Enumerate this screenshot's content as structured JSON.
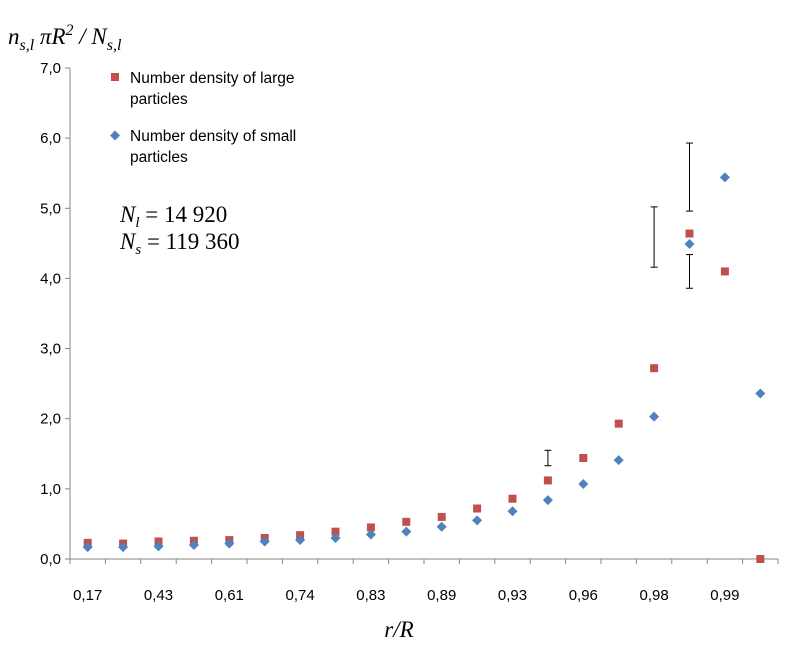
{
  "chart_data": {
    "type": "scatter",
    "ylabel": {
      "prefix": "n",
      "prefix_sub": "s,l",
      "middle": " πR",
      "sup": "2",
      "suffix": " / N",
      "suffix_sub": "s,l"
    },
    "xlabel": "r/R",
    "categories": [
      "0,17",
      "",
      "0,43",
      "",
      "0,61",
      "",
      "0,74",
      "",
      "0,83",
      "",
      "0,89",
      "",
      "0,93",
      "",
      "0,96",
      "",
      "0,98",
      "",
      "0,99",
      ""
    ],
    "x_tick_labels": [
      "0,17",
      "0,43",
      "0,61",
      "0,74",
      "0,83",
      "0,89",
      "0,93",
      "0,96",
      "0,98",
      "0,99"
    ],
    "ylim": [
      0,
      7
    ],
    "y_ticks": [
      "0,0",
      "1,0",
      "2,0",
      "3,0",
      "4,0",
      "5,0",
      "6,0",
      "7,0"
    ],
    "series": [
      {
        "name": "Number density of large particles",
        "color": "#c0504d",
        "marker": "square",
        "values": [
          0.23,
          0.22,
          0.25,
          0.26,
          0.27,
          0.3,
          0.34,
          0.39,
          0.45,
          0.53,
          0.6,
          0.72,
          0.86,
          1.12,
          1.44,
          1.93,
          2.72,
          4.64,
          4.1,
          0.0
        ],
        "error_bars": [
          {
            "index": 16,
            "low": 4.16,
            "high": 5.02
          },
          {
            "index": 17,
            "low": 3.86,
            "high": 4.34
          }
        ]
      },
      {
        "name": "Number density of small particles",
        "color": "#4f81bd",
        "marker": "diamond",
        "values": [
          0.17,
          0.17,
          0.18,
          0.2,
          0.22,
          0.25,
          0.27,
          0.3,
          0.35,
          0.39,
          0.46,
          0.55,
          0.68,
          0.84,
          1.07,
          1.41,
          2.03,
          4.49,
          5.44,
          2.36
        ],
        "error_bars": [
          {
            "index": 13,
            "low": 1.33,
            "high": 1.55
          },
          {
            "index": 17,
            "low": 4.96,
            "high": 5.93
          }
        ]
      }
    ],
    "annotation": {
      "line1": {
        "var": "N",
        "sub": "l",
        "value": " = 14 920"
      },
      "line2": {
        "var": "N",
        "sub": "s",
        "value": " = 119 360"
      }
    },
    "legend_position": "top-left",
    "grid": false
  }
}
